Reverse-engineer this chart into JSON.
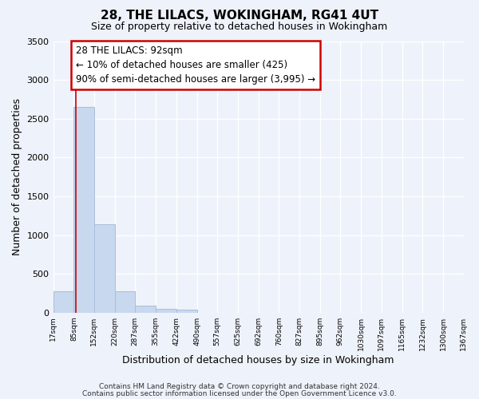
{
  "title": "28, THE LILACS, WOKINGHAM, RG41 4UT",
  "subtitle": "Size of property relative to detached houses in Wokingham",
  "xlabel": "Distribution of detached houses by size in Wokingham",
  "ylabel": "Number of detached properties",
  "bar_color": "#c8d8ef",
  "bar_edgecolor": "#a8bedd",
  "background_color": "#eef2fa",
  "grid_color": "#ffffff",
  "annotation_line_color": "#cc0000",
  "annotation_box_edgecolor": "#cc0000",
  "annotation_line1": "28 THE LILACS: 92sqm",
  "annotation_line2": "← 10% of detached houses are smaller (425)",
  "annotation_line3": "90% of semi-detached houses are larger (3,995) →",
  "property_value": 92,
  "footer1": "Contains HM Land Registry data © Crown copyright and database right 2024.",
  "footer2": "Contains public sector information licensed under the Open Government Licence v3.0.",
  "bin_edges": [
    17,
    85,
    152,
    220,
    287,
    355,
    422,
    490,
    557,
    625,
    692,
    760,
    827,
    895,
    962,
    1030,
    1097,
    1165,
    1232,
    1300,
    1367
  ],
  "bin_labels": [
    "17sqm",
    "85sqm",
    "152sqm",
    "220sqm",
    "287sqm",
    "355sqm",
    "422sqm",
    "490sqm",
    "557sqm",
    "625sqm",
    "692sqm",
    "760sqm",
    "827sqm",
    "895sqm",
    "962sqm",
    "1030sqm",
    "1097sqm",
    "1165sqm",
    "1232sqm",
    "1300sqm",
    "1367sqm"
  ],
  "bar_heights": [
    280,
    2650,
    1140,
    280,
    90,
    50,
    40,
    0,
    0,
    0,
    0,
    0,
    0,
    0,
    0,
    0,
    0,
    0,
    0,
    0
  ],
  "ylim": [
    0,
    3500
  ],
  "yticks": [
    0,
    500,
    1000,
    1500,
    2000,
    2500,
    3000,
    3500
  ]
}
